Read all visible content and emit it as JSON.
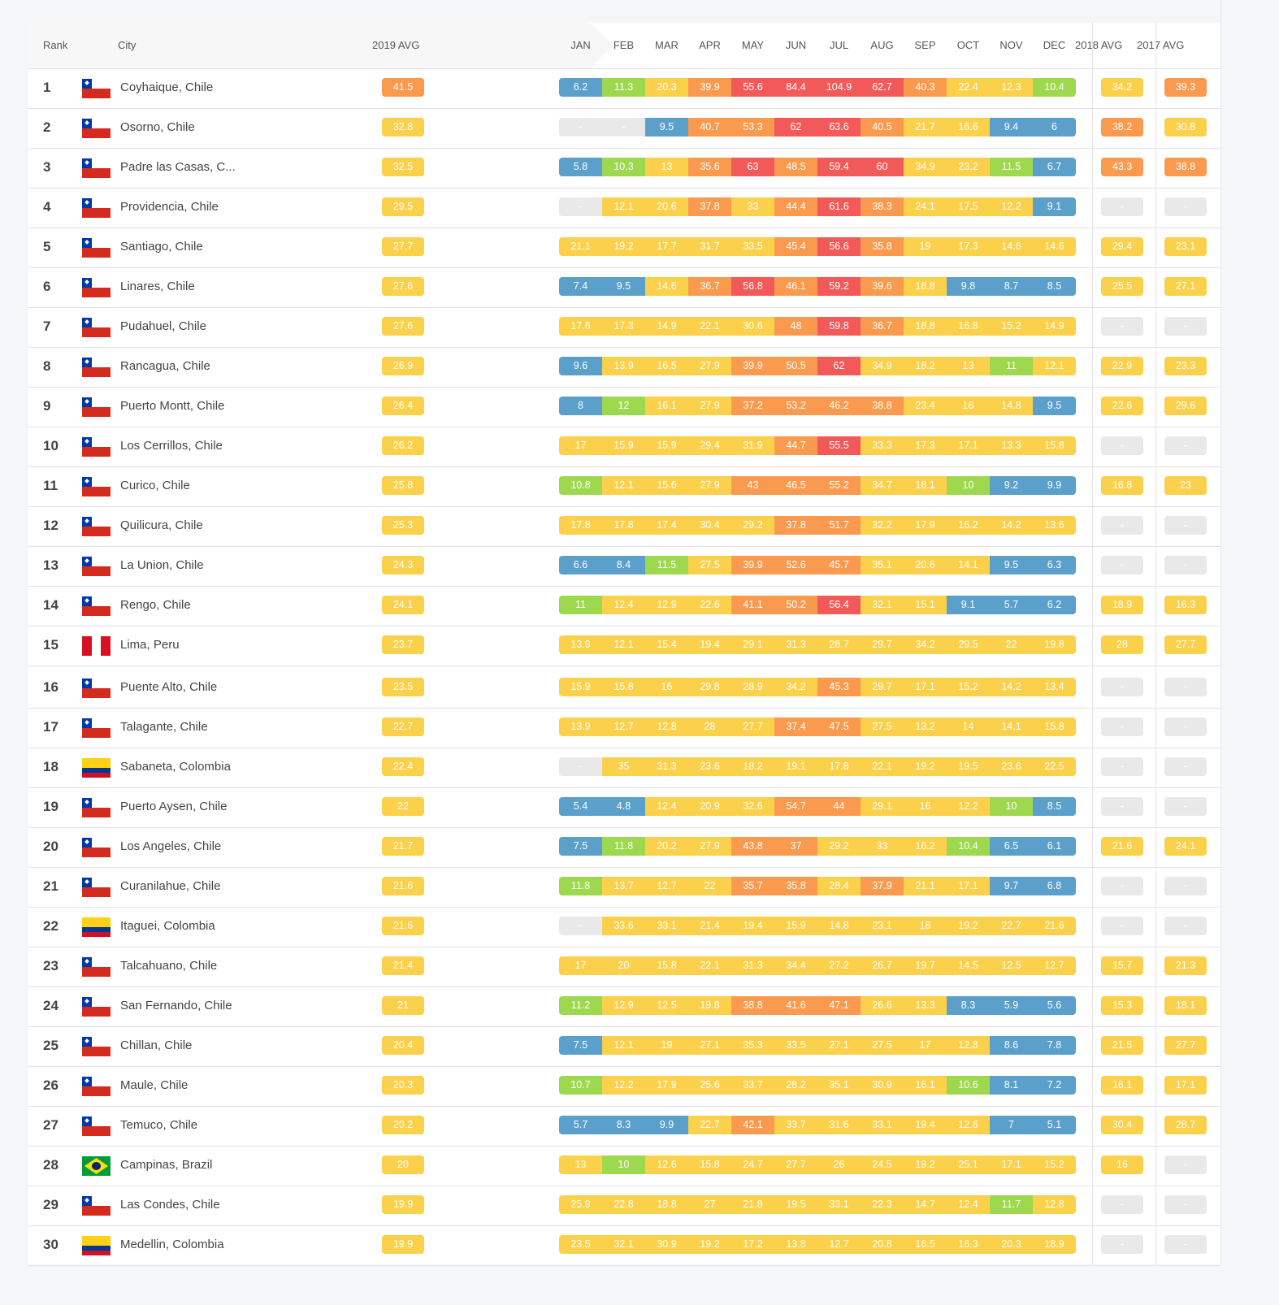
{
  "colors": {
    "blue": "#5b9fcb",
    "green": "#9ed84f",
    "yellow": "#fbd04b",
    "orange": "#f99a4e",
    "red": "#f25a5a",
    "gray": "#e9e9e9"
  },
  "header": {
    "rank": "Rank",
    "city": "City",
    "avg2019": "2019 AVG",
    "months": [
      "JAN",
      "FEB",
      "MAR",
      "APR",
      "MAY",
      "JUN",
      "JUL",
      "AUG",
      "SEP",
      "OCT",
      "NOV",
      "DEC"
    ],
    "avg2018": "2018 AVG",
    "avg2017": "2017 AVG"
  },
  "rows": [
    {
      "rank": "1",
      "city": "Coyhaique, Chile",
      "flag": "chile",
      "avg2019": "41.5",
      "months": [
        "6.2",
        "11.3",
        "20.3",
        "39.9",
        "55.6",
        "84.4",
        "104.9",
        "62.7",
        "40.3",
        "22.4",
        "12.3",
        "10.4"
      ],
      "avg2018": "34.2",
      "avg2017": "39.3"
    },
    {
      "rank": "2",
      "city": "Osorno, Chile",
      "flag": "chile",
      "avg2019": "32.8",
      "months": [
        "-",
        "-",
        "9.5",
        "40.7",
        "53.3",
        "62",
        "63.6",
        "40.5",
        "21.7",
        "16.6",
        "9.4",
        "6"
      ],
      "avg2018": "38.2",
      "avg2017": "30.8"
    },
    {
      "rank": "3",
      "city": "Padre las Casas, C...",
      "flag": "chile",
      "avg2019": "32.5",
      "months": [
        "5.8",
        "10.3",
        "13",
        "35.6",
        "63",
        "48.5",
        "59.4",
        "60",
        "34.9",
        "23.2",
        "11.5",
        "6.7"
      ],
      "avg2018": "43.3",
      "avg2017": "38.8"
    },
    {
      "rank": "4",
      "city": "Providencia, Chile",
      "flag": "chile",
      "avg2019": "29.5",
      "months": [
        "-",
        "12.1",
        "20.6",
        "37.8",
        "33",
        "44.4",
        "61.6",
        "38.3",
        "24.1",
        "17.5",
        "12.2",
        "9.1"
      ],
      "avg2018": "-",
      "avg2017": "-"
    },
    {
      "rank": "5",
      "city": "Santiago, Chile",
      "flag": "chile",
      "avg2019": "27.7",
      "months": [
        "21.1",
        "19.2",
        "17.7",
        "31.7",
        "33.5",
        "45.4",
        "56.6",
        "35.8",
        "19",
        "17.3",
        "14.6",
        "14.6"
      ],
      "avg2018": "29.4",
      "avg2017": "23.1"
    },
    {
      "rank": "6",
      "city": "Linares, Chile",
      "flag": "chile",
      "avg2019": "27.6",
      "months": [
        "7.4",
        "9.5",
        "14.6",
        "36.7",
        "56.8",
        "46.1",
        "59.2",
        "39.6",
        "18.8",
        "9.8",
        "8.7",
        "8.5"
      ],
      "avg2018": "25.5",
      "avg2017": "27.1"
    },
    {
      "rank": "7",
      "city": "Pudahuel, Chile",
      "flag": "chile",
      "avg2019": "27.6",
      "months": [
        "17.6",
        "17.3",
        "14.9",
        "22.1",
        "30.6",
        "48",
        "59.8",
        "36.7",
        "18.8",
        "16.8",
        "15.2",
        "14.9"
      ],
      "avg2018": "-",
      "avg2017": "-"
    },
    {
      "rank": "8",
      "city": "Rancagua, Chile",
      "flag": "chile",
      "avg2019": "26.9",
      "months": [
        "9.6",
        "13.9",
        "16.5",
        "27.9",
        "39.9",
        "50.5",
        "62",
        "34.9",
        "18.2",
        "13",
        "11",
        "12.1"
      ],
      "avg2018": "22.9",
      "avg2017": "23.3"
    },
    {
      "rank": "9",
      "city": "Puerto Montt, Chile",
      "flag": "chile",
      "avg2019": "26.4",
      "months": [
        "8",
        "12",
        "16.1",
        "27.9",
        "37.2",
        "53.2",
        "46.2",
        "38.8",
        "23.4",
        "16",
        "14.8",
        "9.5"
      ],
      "avg2018": "22.6",
      "avg2017": "29.6"
    },
    {
      "rank": "10",
      "city": "Los Cerrillos, Chile",
      "flag": "chile",
      "avg2019": "26.2",
      "months": [
        "17",
        "15.9",
        "15.9",
        "29.4",
        "31.9",
        "44.7",
        "55.5",
        "33.3",
        "17.3",
        "17.1",
        "13.3",
        "15.8"
      ],
      "avg2018": "-",
      "avg2017": "-"
    },
    {
      "rank": "11",
      "city": "Curico, Chile",
      "flag": "chile",
      "avg2019": "25.8",
      "months": [
        "10.8",
        "12.1",
        "15.6",
        "27.9",
        "43",
        "46.5",
        "55.2",
        "34.7",
        "18.1",
        "10",
        "9.2",
        "9.9"
      ],
      "avg2018": "16.8",
      "avg2017": "23"
    },
    {
      "rank": "12",
      "city": "Quilicura, Chile",
      "flag": "chile",
      "avg2019": "25.3",
      "months": [
        "17.8",
        "17.8",
        "17.4",
        "30.4",
        "29.2",
        "37.8",
        "51.7",
        "32.2",
        "17.9",
        "16.2",
        "14.2",
        "13.6"
      ],
      "avg2018": "-",
      "avg2017": "-"
    },
    {
      "rank": "13",
      "city": "La Union, Chile",
      "flag": "chile",
      "avg2019": "24.3",
      "months": [
        "6.6",
        "8.4",
        "11.5",
        "27.5",
        "39.9",
        "52.6",
        "45.7",
        "35.1",
        "20.6",
        "14.1",
        "9.5",
        "6.3"
      ],
      "avg2018": "-",
      "avg2017": "-"
    },
    {
      "rank": "14",
      "city": "Rengo, Chile",
      "flag": "chile",
      "avg2019": "24.1",
      "months": [
        "11",
        "12.4",
        "12.9",
        "22.6",
        "41.1",
        "50.2",
        "56.4",
        "32.1",
        "15.1",
        "9.1",
        "5.7",
        "6.2"
      ],
      "avg2018": "18.9",
      "avg2017": "16.3"
    },
    {
      "rank": "15",
      "city": "Lima, Peru",
      "flag": "peru",
      "avg2019": "23.7",
      "months": [
        "13.9",
        "12.1",
        "15.4",
        "19.4",
        "29.1",
        "31.3",
        "28.7",
        "29.7",
        "34.2",
        "29.5",
        "22",
        "19.8"
      ],
      "avg2018": "28",
      "avg2017": "27.7"
    },
    {
      "rank": "16",
      "city": "Puente Alto, Chile",
      "flag": "chile",
      "avg2019": "23.5",
      "months": [
        "15.9",
        "15.8",
        "16",
        "29.8",
        "28.9",
        "34.2",
        "45.3",
        "29.7",
        "17.1",
        "15.2",
        "14.2",
        "13.4"
      ],
      "avg2018": "-",
      "avg2017": "-"
    },
    {
      "rank": "17",
      "city": "Talagante, Chile",
      "flag": "chile",
      "avg2019": "22.7",
      "months": [
        "13.9",
        "12.7",
        "12.8",
        "28",
        "27.7",
        "37.4",
        "47.5",
        "27.5",
        "13.2",
        "14",
        "14.1",
        "15.8"
      ],
      "avg2018": "-",
      "avg2017": "-"
    },
    {
      "rank": "18",
      "city": "Sabaneta, Colombia",
      "flag": "colombia",
      "avg2019": "22.4",
      "months": [
        "-",
        "35",
        "31.3",
        "23.6",
        "18.2",
        "19.1",
        "17.8",
        "22.1",
        "19.2",
        "19.5",
        "23.6",
        "22.5"
      ],
      "avg2018": "-",
      "avg2017": "-"
    },
    {
      "rank": "19",
      "city": "Puerto Aysen, Chile",
      "flag": "chile",
      "avg2019": "22",
      "months": [
        "5.4",
        "4.8",
        "12.4",
        "20.9",
        "32.6",
        "54.7",
        "44",
        "29.1",
        "16",
        "12.2",
        "10",
        "8.5"
      ],
      "avg2018": "-",
      "avg2017": "-"
    },
    {
      "rank": "20",
      "city": "Los Angeles, Chile",
      "flag": "chile",
      "avg2019": "21.7",
      "months": [
        "7.5",
        "11.8",
        "20.2",
        "27.9",
        "43.8",
        "37",
        "29.2",
        "33",
        "16.2",
        "10.4",
        "6.5",
        "6.1"
      ],
      "avg2018": "21.6",
      "avg2017": "24.1"
    },
    {
      "rank": "21",
      "city": "Curanilahue, Chile",
      "flag": "chile",
      "avg2019": "21.6",
      "months": [
        "11.8",
        "13.7",
        "12.7",
        "22",
        "35.7",
        "35.8",
        "28.4",
        "37.9",
        "21.1",
        "17.1",
        "9.7",
        "6.8"
      ],
      "avg2018": "-",
      "avg2017": "-"
    },
    {
      "rank": "22",
      "city": "Itaguei, Colombia",
      "flag": "colombia",
      "avg2019": "21.6",
      "months": [
        "-",
        "33.6",
        "33.1",
        "21.4",
        "19.4",
        "15.9",
        "14.8",
        "23.1",
        "18",
        "19.2",
        "22.7",
        "21.6"
      ],
      "avg2018": "-",
      "avg2017": "-"
    },
    {
      "rank": "23",
      "city": "Talcahuano, Chile",
      "flag": "chile",
      "avg2019": "21.4",
      "months": [
        "17",
        "20",
        "15.8",
        "22.1",
        "31.3",
        "34.4",
        "27.2",
        "26.7",
        "19.7",
        "14.5",
        "12.5",
        "12.7"
      ],
      "avg2018": "15.7",
      "avg2017": "21.3"
    },
    {
      "rank": "24",
      "city": "San Fernando, Chile",
      "flag": "chile",
      "avg2019": "21",
      "months": [
        "11.2",
        "12.9",
        "12.5",
        "19.8",
        "38.8",
        "41.6",
        "47.1",
        "26.6",
        "13.3",
        "8.3",
        "5.9",
        "5.6"
      ],
      "avg2018": "15.3",
      "avg2017": "18.1"
    },
    {
      "rank": "25",
      "city": "Chillan, Chile",
      "flag": "chile",
      "avg2019": "20.4",
      "months": [
        "7.5",
        "12.1",
        "19",
        "27.1",
        "35.3",
        "33.5",
        "27.1",
        "27.5",
        "17",
        "12.8",
        "8.6",
        "7.8"
      ],
      "avg2018": "21.5",
      "avg2017": "27.7"
    },
    {
      "rank": "26",
      "city": "Maule, Chile",
      "flag": "chile",
      "avg2019": "20.3",
      "months": [
        "10.7",
        "12.2",
        "17.9",
        "25.6",
        "33.7",
        "28.2",
        "35.1",
        "30.9",
        "16.1",
        "10.6",
        "8.1",
        "7.2"
      ],
      "avg2018": "16.1",
      "avg2017": "17.1"
    },
    {
      "rank": "27",
      "city": "Temuco, Chile",
      "flag": "chile",
      "avg2019": "20.2",
      "months": [
        "5.7",
        "8.3",
        "9.9",
        "22.7",
        "42.1",
        "33.7",
        "31.6",
        "33.1",
        "19.4",
        "12.6",
        "7",
        "5.1"
      ],
      "avg2018": "30.4",
      "avg2017": "28.7"
    },
    {
      "rank": "28",
      "city": "Campinas, Brazil",
      "flag": "brazil",
      "avg2019": "20",
      "months": [
        "13",
        "10",
        "12.6",
        "15.8",
        "24.7",
        "27.7",
        "26",
        "24.5",
        "19.2",
        "25.1",
        "17.1",
        "15.2"
      ],
      "avg2018": "16",
      "avg2017": "-"
    },
    {
      "rank": "29",
      "city": "Las Condes, Chile",
      "flag": "chile",
      "avg2019": "19.9",
      "months": [
        "25.9",
        "22.8",
        "18.8",
        "27",
        "21.8",
        "19.5",
        "33.1",
        "22.3",
        "14.7",
        "12.4",
        "11.7",
        "12.8"
      ],
      "avg2018": "-",
      "avg2017": "-"
    },
    {
      "rank": "30",
      "city": "Medellin, Colombia",
      "flag": "colombia",
      "avg2019": "19.9",
      "months": [
        "23.5",
        "32.1",
        "30.9",
        "19.2",
        "17.2",
        "13.8",
        "12.7",
        "20.8",
        "16.5",
        "16.3",
        "20.3",
        "18.9"
      ],
      "avg2018": "-",
      "avg2017": "-"
    }
  ]
}
